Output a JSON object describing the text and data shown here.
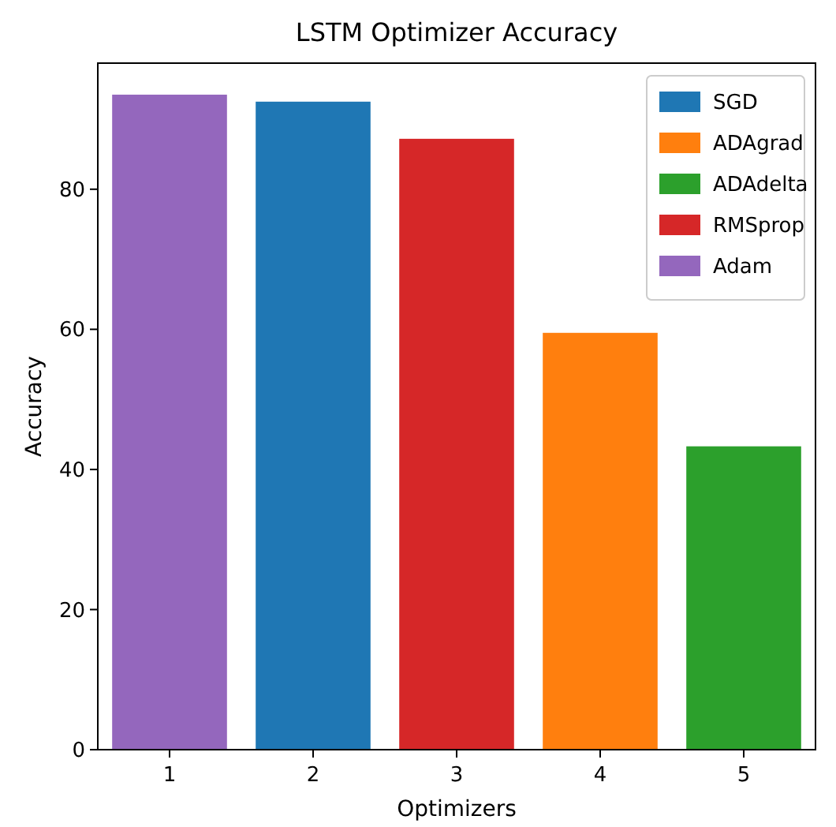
{
  "chart_data": {
    "type": "bar",
    "title": "LSTM Optimizer Accuracy",
    "xlabel": "Optimizers",
    "ylabel": "Accuracy",
    "categories": [
      "1",
      "2",
      "3",
      "4",
      "5"
    ],
    "series": [
      {
        "name": "SGD",
        "color": "#1f77b4",
        "values": [
          null,
          92.5,
          null,
          null,
          null
        ]
      },
      {
        "name": "ADAgrad",
        "color": "#ff7f0e",
        "values": [
          null,
          null,
          null,
          59.5,
          null
        ]
      },
      {
        "name": "ADAdelta",
        "color": "#2ca02c",
        "values": [
          null,
          null,
          null,
          null,
          43.3
        ]
      },
      {
        "name": "RMSprop",
        "color": "#d62728",
        "values": [
          null,
          null,
          87.2,
          null,
          null
        ]
      },
      {
        "name": "Adam",
        "color": "#9467bd",
        "values": [
          93.5,
          null,
          null,
          null,
          null
        ]
      }
    ],
    "ylim": [
      0,
      98
    ],
    "yticks": [
      0,
      20,
      40,
      60,
      80
    ],
    "legend": "top right"
  }
}
